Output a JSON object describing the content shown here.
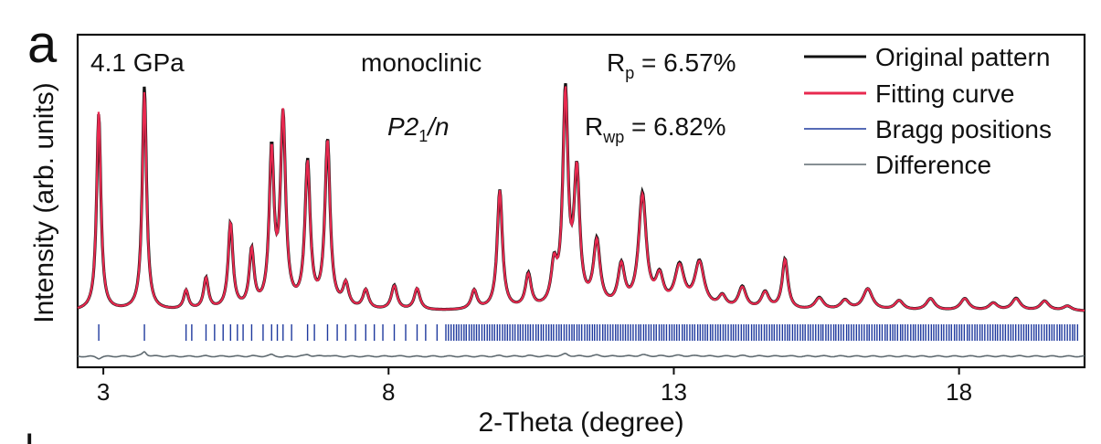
{
  "panel_label": "a",
  "bottom_mark": "|",
  "chart_data": {
    "type": "line",
    "xlabel": "2-Theta (degree)",
    "ylabel": "Intensity (arb. units)",
    "xlim": [
      2.55,
      20.2
    ],
    "ylim": [
      -0.2,
      1.05
    ],
    "xticks": [
      3,
      8,
      13,
      18
    ],
    "annotations": {
      "pressure": "4.1 GPa",
      "system": "monoclinic",
      "space_group": {
        "main": "P2",
        "sub": "1",
        "tail": "/n"
      },
      "rp": {
        "main": "R",
        "sub": "p",
        "value": " = 6.57%"
      },
      "rwp": {
        "main": "R",
        "sub": "wp",
        "value": " = 6.82%"
      }
    },
    "legend": [
      "Original pattern",
      "Fitting curve",
      "Bragg positions",
      "Difference"
    ],
    "legend_position": "top-right",
    "colors": {
      "original": "#111111",
      "fitting": "#e8294f",
      "bragg": "#1f3a9e",
      "difference": "#5f6a70"
    },
    "baseline": 0.02,
    "peaks": [
      {
        "x": 2.92,
        "h": 0.84,
        "w": 0.045
      },
      {
        "x": 3.72,
        "h": 0.92,
        "w": 0.045
      },
      {
        "x": 4.45,
        "h": 0.08,
        "w": 0.05
      },
      {
        "x": 4.8,
        "h": 0.13,
        "w": 0.05
      },
      {
        "x": 5.23,
        "h": 0.36,
        "w": 0.05
      },
      {
        "x": 5.6,
        "h": 0.24,
        "w": 0.05
      },
      {
        "x": 5.95,
        "h": 0.64,
        "w": 0.05
      },
      {
        "x": 6.15,
        "h": 0.8,
        "w": 0.055
      },
      {
        "x": 6.58,
        "h": 0.6,
        "w": 0.055
      },
      {
        "x": 6.93,
        "h": 0.7,
        "w": 0.055
      },
      {
        "x": 7.25,
        "h": 0.1,
        "w": 0.06
      },
      {
        "x": 7.6,
        "h": 0.08,
        "w": 0.06
      },
      {
        "x": 8.1,
        "h": 0.1,
        "w": 0.06
      },
      {
        "x": 8.5,
        "h": 0.09,
        "w": 0.06
      },
      {
        "x": 9.5,
        "h": 0.08,
        "w": 0.06
      },
      {
        "x": 9.95,
        "h": 0.5,
        "w": 0.055
      },
      {
        "x": 10.45,
        "h": 0.14,
        "w": 0.06
      },
      {
        "x": 10.9,
        "h": 0.16,
        "w": 0.06
      },
      {
        "x": 11.1,
        "h": 0.88,
        "w": 0.055
      },
      {
        "x": 11.3,
        "h": 0.55,
        "w": 0.06
      },
      {
        "x": 11.65,
        "h": 0.27,
        "w": 0.07
      },
      {
        "x": 12.08,
        "h": 0.17,
        "w": 0.07
      },
      {
        "x": 12.45,
        "h": 0.47,
        "w": 0.08
      },
      {
        "x": 12.75,
        "h": 0.12,
        "w": 0.08
      },
      {
        "x": 13.1,
        "h": 0.17,
        "w": 0.1
      },
      {
        "x": 13.45,
        "h": 0.19,
        "w": 0.1
      },
      {
        "x": 13.85,
        "h": 0.05,
        "w": 0.08
      },
      {
        "x": 14.2,
        "h": 0.09,
        "w": 0.08
      },
      {
        "x": 14.6,
        "h": 0.07,
        "w": 0.08
      },
      {
        "x": 14.95,
        "h": 0.21,
        "w": 0.06
      },
      {
        "x": 15.55,
        "h": 0.05,
        "w": 0.09
      },
      {
        "x": 16.0,
        "h": 0.04,
        "w": 0.09
      },
      {
        "x": 16.4,
        "h": 0.09,
        "w": 0.1
      },
      {
        "x": 16.95,
        "h": 0.04,
        "w": 0.09
      },
      {
        "x": 17.5,
        "h": 0.05,
        "w": 0.09
      },
      {
        "x": 18.1,
        "h": 0.05,
        "w": 0.09
      },
      {
        "x": 18.6,
        "h": 0.03,
        "w": 0.09
      },
      {
        "x": 19.0,
        "h": 0.05,
        "w": 0.09
      },
      {
        "x": 19.5,
        "h": 0.04,
        "w": 0.09
      },
      {
        "x": 19.9,
        "h": 0.02,
        "w": 0.09
      }
    ],
    "bragg_positions": [
      2.92,
      3.72,
      4.45,
      4.55,
      4.8,
      4.95,
      5.1,
      5.23,
      5.35,
      5.45,
      5.6,
      5.8,
      5.95,
      6.05,
      6.15,
      6.3,
      6.58,
      6.7,
      6.93,
      7.1,
      7.25,
      7.42,
      7.6,
      7.75,
      7.9,
      8.1,
      8.3,
      8.5,
      8.65,
      8.85
    ],
    "bragg_dense_region": [
      9.0,
      20.1
    ]
  }
}
